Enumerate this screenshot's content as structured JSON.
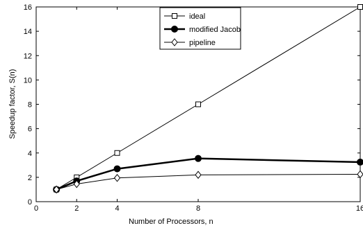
{
  "chart_data": {
    "type": "line",
    "xlabel": "Number of Processors, n",
    "ylabel": "Speedup factor, S(n)",
    "xlim": [
      0,
      16
    ],
    "ylim": [
      0,
      16
    ],
    "xticks": [
      0,
      2,
      4,
      8,
      16
    ],
    "yticks": [
      0,
      2,
      4,
      6,
      8,
      10,
      12,
      14,
      16
    ],
    "grid": false,
    "legend_position": "top-center",
    "series": [
      {
        "name": "ideal",
        "marker": "square",
        "line_weight": "thin",
        "color": "#000000",
        "x": [
          1,
          2,
          4,
          8,
          16
        ],
        "y": [
          1,
          2,
          4,
          8,
          16
        ]
      },
      {
        "name": "modified Jacob",
        "marker": "filled-circle",
        "line_weight": "bold",
        "color": "#000000",
        "x": [
          1,
          2,
          4,
          8,
          16
        ],
        "y": [
          1.0,
          1.7,
          2.7,
          3.55,
          3.25
        ]
      },
      {
        "name": "pipeline",
        "marker": "diamond",
        "line_weight": "thin",
        "color": "#000000",
        "x": [
          1,
          2,
          4,
          8,
          16
        ],
        "y": [
          1.0,
          1.45,
          1.95,
          2.2,
          2.25
        ]
      }
    ]
  }
}
